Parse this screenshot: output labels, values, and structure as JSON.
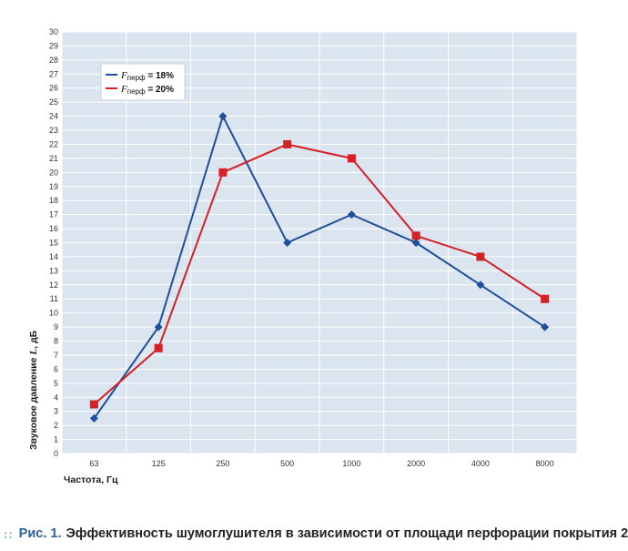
{
  "chart_data": {
    "type": "line",
    "categories": [
      "63",
      "125",
      "250",
      "500",
      "1000",
      "2000",
      "4000",
      "8000"
    ],
    "series": [
      {
        "name_var": "F",
        "name_sub": "перф",
        "name_rest": " = 18%",
        "color": "#1f4e9a",
        "marker": "diamond",
        "values": [
          2.5,
          9,
          24,
          15,
          17,
          15,
          12,
          9
        ]
      },
      {
        "name_var": "F",
        "name_sub": "перф",
        "name_rest": " = 20%",
        "color": "#d61f26",
        "marker": "square",
        "values": [
          3.5,
          7.5,
          20,
          22,
          21,
          15.5,
          14,
          11
        ]
      }
    ],
    "ylim": [
      0,
      30
    ],
    "yticks": [
      0,
      1,
      2,
      3,
      4,
      5,
      6,
      7,
      8,
      9,
      10,
      11,
      12,
      13,
      14,
      15,
      16,
      17,
      18,
      19,
      20,
      21,
      22,
      23,
      24,
      25,
      26,
      27,
      28,
      29,
      30
    ],
    "ylabel_main": "Звуковое давление ",
    "ylabel_var": "L",
    "ylabel_unit": ", дБ",
    "xlabel": "Частота, Гц",
    "grid": true,
    "legend_position": "top-left",
    "plot_background": "#dbe5ef"
  },
  "caption": {
    "dots": "::",
    "figure": "Рис. 1.",
    "text": "Эффективность шумоглушителя в зависимости от площади перфорации покрытия 2"
  }
}
